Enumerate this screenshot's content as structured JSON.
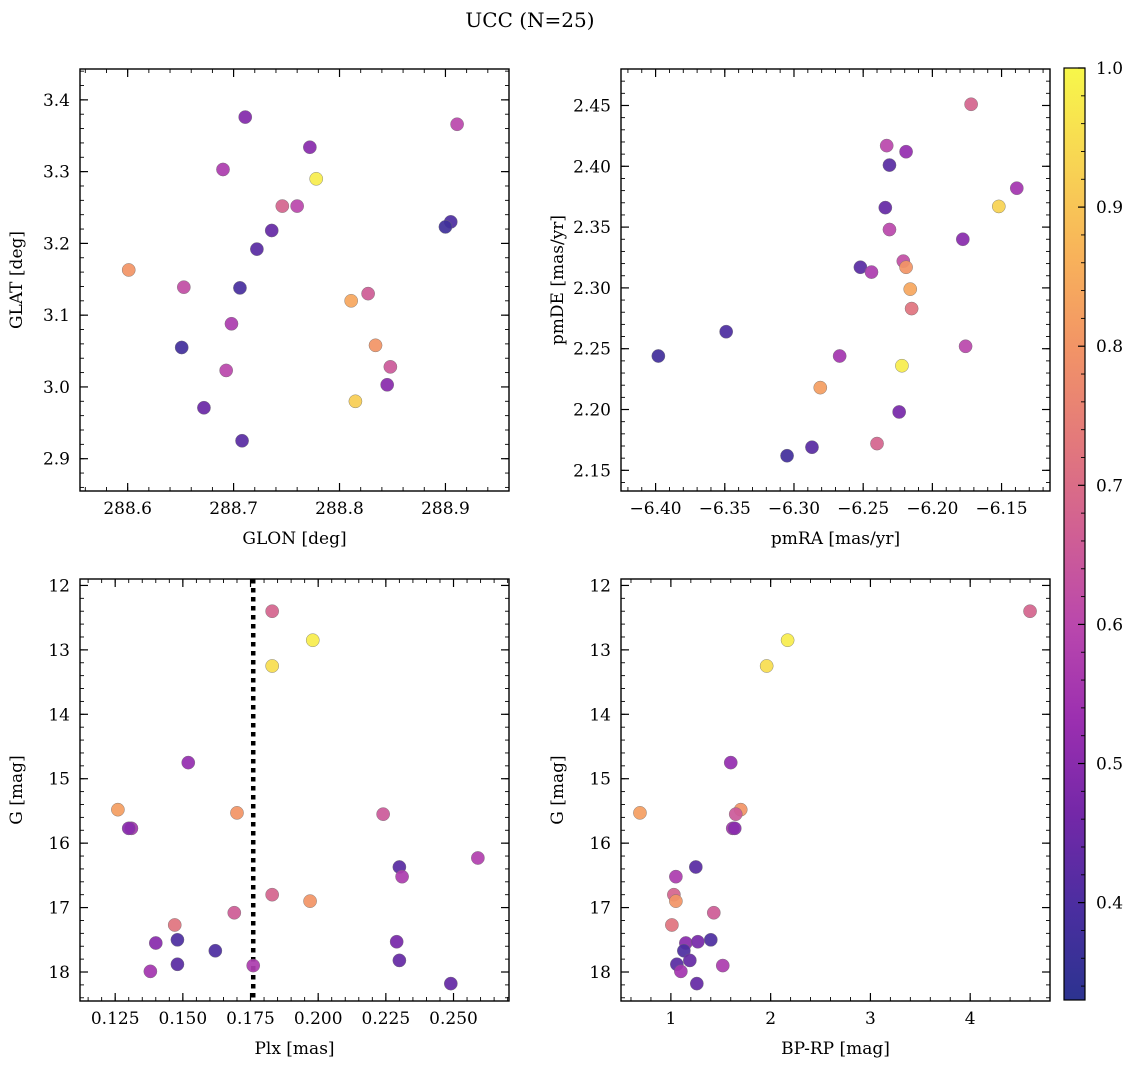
{
  "figure": {
    "title": "UCC (N=25)"
  },
  "colorbar": {
    "min": 0.33,
    "max": 1.0,
    "ticks": [
      0.4,
      0.5,
      0.6,
      0.7,
      0.8,
      0.9,
      1.0
    ],
    "tick_labels": [
      "0.4",
      "0.5",
      "0.6",
      "0.7",
      "0.8",
      "0.9",
      "1.0"
    ],
    "colormap": "plasma",
    "colormap_stops": [
      "#2c3390",
      "#4b2ea0",
      "#7428a8",
      "#9b2fb0",
      "#b947ad",
      "#d05f94",
      "#e3797b",
      "#f29466",
      "#f8b35a",
      "#f8d553",
      "#f7f74a"
    ]
  },
  "chart_data": [
    {
      "id": "glon_glat",
      "type": "scatter",
      "xlabel": "GLON [deg]",
      "ylabel": "GLAT [deg]",
      "xlim": [
        288.555,
        288.96
      ],
      "ylim": [
        2.855,
        3.443
      ],
      "xticks": [
        288.6,
        288.7,
        288.8,
        288.9
      ],
      "xtick_labels": [
        "288.6",
        "288.7",
        "288.8",
        "288.9"
      ],
      "yticks": [
        2.9,
        3.0,
        3.1,
        3.2,
        3.3,
        3.4
      ],
      "ytick_labels": [
        "2.9",
        "3.0",
        "3.1",
        "3.2",
        "3.3",
        "3.4"
      ],
      "invert_y": false,
      "points": [
        {
          "x": 288.711,
          "y": 3.376,
          "c": 0.49
        },
        {
          "x": 288.69,
          "y": 3.303,
          "c": 0.57
        },
        {
          "x": 288.772,
          "y": 3.334,
          "c": 0.5
        },
        {
          "x": 288.911,
          "y": 3.366,
          "c": 0.6
        },
        {
          "x": 288.778,
          "y": 3.29,
          "c": 0.98
        },
        {
          "x": 288.746,
          "y": 3.252,
          "c": 0.68
        },
        {
          "x": 288.76,
          "y": 3.252,
          "c": 0.6
        },
        {
          "x": 288.736,
          "y": 3.218,
          "c": 0.44
        },
        {
          "x": 288.722,
          "y": 3.192,
          "c": 0.42
        },
        {
          "x": 288.905,
          "y": 3.23,
          "c": 0.4
        },
        {
          "x": 288.9,
          "y": 3.223,
          "c": 0.37
        },
        {
          "x": 288.601,
          "y": 3.163,
          "c": 0.8
        },
        {
          "x": 288.653,
          "y": 3.139,
          "c": 0.62
        },
        {
          "x": 288.706,
          "y": 3.138,
          "c": 0.39
        },
        {
          "x": 288.811,
          "y": 3.12,
          "c": 0.84
        },
        {
          "x": 288.827,
          "y": 3.13,
          "c": 0.66
        },
        {
          "x": 288.698,
          "y": 3.088,
          "c": 0.57
        },
        {
          "x": 288.651,
          "y": 3.055,
          "c": 0.38
        },
        {
          "x": 288.834,
          "y": 3.058,
          "c": 0.8
        },
        {
          "x": 288.848,
          "y": 3.028,
          "c": 0.65
        },
        {
          "x": 288.693,
          "y": 3.023,
          "c": 0.6
        },
        {
          "x": 288.845,
          "y": 3.003,
          "c": 0.5
        },
        {
          "x": 288.815,
          "y": 2.98,
          "c": 0.92
        },
        {
          "x": 288.672,
          "y": 2.971,
          "c": 0.45
        },
        {
          "x": 288.708,
          "y": 2.925,
          "c": 0.42
        }
      ]
    },
    {
      "id": "pmra_pmde",
      "type": "scatter",
      "xlabel": "pmRA [mas/yr]",
      "ylabel": "pmDE [mas/yr]",
      "xlim": [
        -6.425,
        -6.115
      ],
      "ylim": [
        2.133,
        2.48
      ],
      "xticks": [
        -6.4,
        -6.35,
        -6.3,
        -6.25,
        -6.2,
        -6.15
      ],
      "xtick_labels": [
        "−6.40",
        "−6.35",
        "−6.30",
        "−6.25",
        "−6.20",
        "−6.15"
      ],
      "yticks": [
        2.15,
        2.2,
        2.25,
        2.3,
        2.35,
        2.4,
        2.45
      ],
      "ytick_labels": [
        "2.15",
        "2.20",
        "2.25",
        "2.30",
        "2.35",
        "2.40",
        "2.45"
      ],
      "invert_y": false,
      "points": [
        {
          "x": -6.172,
          "y": 2.451,
          "c": 0.68
        },
        {
          "x": -6.233,
          "y": 2.417,
          "c": 0.6
        },
        {
          "x": -6.219,
          "y": 2.412,
          "c": 0.52
        },
        {
          "x": -6.231,
          "y": 2.401,
          "c": 0.42
        },
        {
          "x": -6.139,
          "y": 2.382,
          "c": 0.55
        },
        {
          "x": -6.152,
          "y": 2.367,
          "c": 0.93
        },
        {
          "x": -6.234,
          "y": 2.366,
          "c": 0.44
        },
        {
          "x": -6.231,
          "y": 2.348,
          "c": 0.6
        },
        {
          "x": -6.178,
          "y": 2.34,
          "c": 0.5
        },
        {
          "x": -6.221,
          "y": 2.322,
          "c": 0.62
        },
        {
          "x": -6.252,
          "y": 2.317,
          "c": 0.42
        },
        {
          "x": -6.219,
          "y": 2.317,
          "c": 0.8
        },
        {
          "x": -6.244,
          "y": 2.313,
          "c": 0.57
        },
        {
          "x": -6.216,
          "y": 2.299,
          "c": 0.84
        },
        {
          "x": -6.215,
          "y": 2.283,
          "c": 0.72
        },
        {
          "x": -6.349,
          "y": 2.264,
          "c": 0.4
        },
        {
          "x": -6.176,
          "y": 2.252,
          "c": 0.6
        },
        {
          "x": -6.398,
          "y": 2.244,
          "c": 0.38
        },
        {
          "x": -6.267,
          "y": 2.244,
          "c": 0.55
        },
        {
          "x": -6.222,
          "y": 2.236,
          "c": 0.98
        },
        {
          "x": -6.281,
          "y": 2.218,
          "c": 0.82
        },
        {
          "x": -6.224,
          "y": 2.198,
          "c": 0.47
        },
        {
          "x": -6.24,
          "y": 2.172,
          "c": 0.68
        },
        {
          "x": -6.287,
          "y": 2.169,
          "c": 0.42
        },
        {
          "x": -6.305,
          "y": 2.162,
          "c": 0.38
        }
      ]
    },
    {
      "id": "plx_g",
      "type": "scatter",
      "xlabel": "Plx [mas]",
      "ylabel": "G [mag]",
      "xlim": [
        0.112,
        0.2705
      ],
      "ylim": [
        11.9,
        18.45
      ],
      "xticks": [
        0.125,
        0.15,
        0.175,
        0.2,
        0.225,
        0.25
      ],
      "xtick_labels": [
        "0.125",
        "0.150",
        "0.175",
        "0.200",
        "0.225",
        "0.250"
      ],
      "yticks": [
        12,
        13,
        14,
        15,
        16,
        17,
        18
      ],
      "ytick_labels": [
        "12",
        "13",
        "14",
        "15",
        "16",
        "17",
        "18"
      ],
      "invert_y": true,
      "vline": 0.176,
      "points": [
        {
          "x": 0.183,
          "y": 12.4,
          "c": 0.68
        },
        {
          "x": 0.198,
          "y": 12.85,
          "c": 0.98
        },
        {
          "x": 0.183,
          "y": 13.25,
          "c": 0.95
        },
        {
          "x": 0.152,
          "y": 14.75,
          "c": 0.52
        },
        {
          "x": 0.126,
          "y": 15.48,
          "c": 0.82
        },
        {
          "x": 0.17,
          "y": 15.53,
          "c": 0.8
        },
        {
          "x": 0.224,
          "y": 15.55,
          "c": 0.65
        },
        {
          "x": 0.131,
          "y": 15.77,
          "c": 0.55
        },
        {
          "x": 0.13,
          "y": 15.77,
          "c": 0.5
        },
        {
          "x": 0.259,
          "y": 16.23,
          "c": 0.58
        },
        {
          "x": 0.23,
          "y": 16.37,
          "c": 0.42
        },
        {
          "x": 0.231,
          "y": 16.52,
          "c": 0.57
        },
        {
          "x": 0.183,
          "y": 16.8,
          "c": 0.68
        },
        {
          "x": 0.197,
          "y": 16.9,
          "c": 0.8
        },
        {
          "x": 0.169,
          "y": 17.08,
          "c": 0.66
        },
        {
          "x": 0.147,
          "y": 17.27,
          "c": 0.72
        },
        {
          "x": 0.148,
          "y": 17.5,
          "c": 0.4
        },
        {
          "x": 0.14,
          "y": 17.55,
          "c": 0.5
        },
        {
          "x": 0.229,
          "y": 17.53,
          "c": 0.47
        },
        {
          "x": 0.162,
          "y": 17.67,
          "c": 0.4
        },
        {
          "x": 0.23,
          "y": 17.82,
          "c": 0.44
        },
        {
          "x": 0.148,
          "y": 17.88,
          "c": 0.42
        },
        {
          "x": 0.176,
          "y": 17.9,
          "c": 0.57
        },
        {
          "x": 0.138,
          "y": 17.99,
          "c": 0.55
        },
        {
          "x": 0.249,
          "y": 18.18,
          "c": 0.44
        }
      ]
    },
    {
      "id": "bprp_g",
      "type": "scatter",
      "xlabel": "BP-RP [mag]",
      "ylabel": "G [mag]",
      "xlim": [
        0.5,
        4.8
      ],
      "ylim": [
        11.9,
        18.45
      ],
      "xticks": [
        1,
        2,
        3,
        4
      ],
      "xtick_labels": [
        "1",
        "2",
        "3",
        "4"
      ],
      "yticks": [
        12,
        13,
        14,
        15,
        16,
        17,
        18
      ],
      "ytick_labels": [
        "12",
        "13",
        "14",
        "15",
        "16",
        "17",
        "18"
      ],
      "invert_y": true,
      "points": [
        {
          "x": 4.6,
          "y": 12.4,
          "c": 0.68
        },
        {
          "x": 2.17,
          "y": 12.85,
          "c": 0.98
        },
        {
          "x": 1.96,
          "y": 13.25,
          "c": 0.95
        },
        {
          "x": 1.6,
          "y": 14.75,
          "c": 0.52
        },
        {
          "x": 0.69,
          "y": 15.53,
          "c": 0.82
        },
        {
          "x": 1.7,
          "y": 15.48,
          "c": 0.8
        },
        {
          "x": 1.65,
          "y": 15.55,
          "c": 0.65
        },
        {
          "x": 1.62,
          "y": 15.77,
          "c": 0.55
        },
        {
          "x": 1.64,
          "y": 15.77,
          "c": 0.5
        },
        {
          "x": 1.25,
          "y": 16.37,
          "c": 0.42
        },
        {
          "x": 1.05,
          "y": 16.52,
          "c": 0.57
        },
        {
          "x": 1.03,
          "y": 16.8,
          "c": 0.68
        },
        {
          "x": 1.05,
          "y": 16.9,
          "c": 0.8
        },
        {
          "x": 1.43,
          "y": 17.08,
          "c": 0.66
        },
        {
          "x": 1.01,
          "y": 17.27,
          "c": 0.72
        },
        {
          "x": 1.4,
          "y": 17.5,
          "c": 0.4
        },
        {
          "x": 1.15,
          "y": 17.55,
          "c": 0.5
        },
        {
          "x": 1.27,
          "y": 17.53,
          "c": 0.47
        },
        {
          "x": 1.13,
          "y": 17.67,
          "c": 0.4
        },
        {
          "x": 1.19,
          "y": 17.82,
          "c": 0.44
        },
        {
          "x": 1.06,
          "y": 17.88,
          "c": 0.42
        },
        {
          "x": 1.52,
          "y": 17.9,
          "c": 0.57
        },
        {
          "x": 1.1,
          "y": 17.99,
          "c": 0.55
        },
        {
          "x": 1.26,
          "y": 18.18,
          "c": 0.44
        }
      ]
    }
  ]
}
